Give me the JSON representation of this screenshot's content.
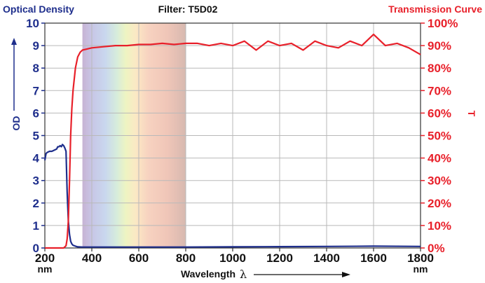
{
  "chart_data": {
    "type": "line",
    "title": "Filter: T5D02",
    "left_axis": {
      "title": "Optical Density",
      "label": "OD",
      "range": [
        0,
        10
      ],
      "ticks": [
        "0",
        "1",
        "2",
        "3",
        "4",
        "5",
        "6",
        "7",
        "8",
        "9",
        "10"
      ]
    },
    "right_axis": {
      "title": "Transmission Curve",
      "label": "T",
      "range": [
        0,
        100
      ],
      "ticks": [
        "0%",
        "10%",
        "20%",
        "30%",
        "40%",
        "50%",
        "60%",
        "70%",
        "80%",
        "90%",
        "100%"
      ]
    },
    "x_axis": {
      "label": "Wavelength",
      "symbol": "λ",
      "range": [
        200,
        1800
      ],
      "ticks": [
        "200",
        "400",
        "600",
        "800",
        "1000",
        "1200",
        "1400",
        "1600",
        "1800"
      ],
      "unit": "nm"
    },
    "grid": true,
    "visible_spectrum_band": [
      360,
      800
    ],
    "series": [
      {
        "axis": "left",
        "color": "#1e2e8c",
        "x": [
          200,
          205,
          210,
          220,
          230,
          240,
          250,
          255,
          260,
          265,
          270,
          275,
          280,
          285,
          290,
          295,
          300,
          305,
          310,
          315,
          320,
          330,
          340,
          360,
          400,
          500,
          600,
          800,
          1000,
          1200,
          1400,
          1600,
          1800
        ],
        "y": [
          3.9,
          4.2,
          4.25,
          4.3,
          4.3,
          4.35,
          4.4,
          4.5,
          4.5,
          4.55,
          4.5,
          4.6,
          4.55,
          4.45,
          4.3,
          2.5,
          1.2,
          0.6,
          0.3,
          0.18,
          0.12,
          0.08,
          0.05,
          0.04,
          0.04,
          0.04,
          0.04,
          0.04,
          0.05,
          0.06,
          0.07,
          0.08,
          0.07
        ]
      },
      {
        "axis": "right",
        "color": "#e8202a",
        "x": [
          200,
          280,
          290,
          295,
          300,
          305,
          310,
          315,
          320,
          330,
          340,
          350,
          360,
          380,
          400,
          450,
          500,
          550,
          600,
          650,
          700,
          750,
          800,
          850,
          900,
          950,
          1000,
          1050,
          1100,
          1150,
          1200,
          1250,
          1300,
          1350,
          1400,
          1450,
          1500,
          1550,
          1600,
          1650,
          1700,
          1750,
          1800
        ],
        "y": [
          0,
          0,
          1,
          4,
          12,
          30,
          50,
          62,
          70,
          80,
          85,
          87,
          88,
          88.5,
          89,
          89.5,
          90,
          90,
          90.5,
          90.5,
          91,
          90.5,
          91,
          91,
          90,
          91,
          90,
          92,
          88,
          92,
          90,
          91,
          88,
          92,
          90,
          89,
          92,
          90,
          95,
          90,
          91,
          89,
          86
        ]
      }
    ]
  }
}
